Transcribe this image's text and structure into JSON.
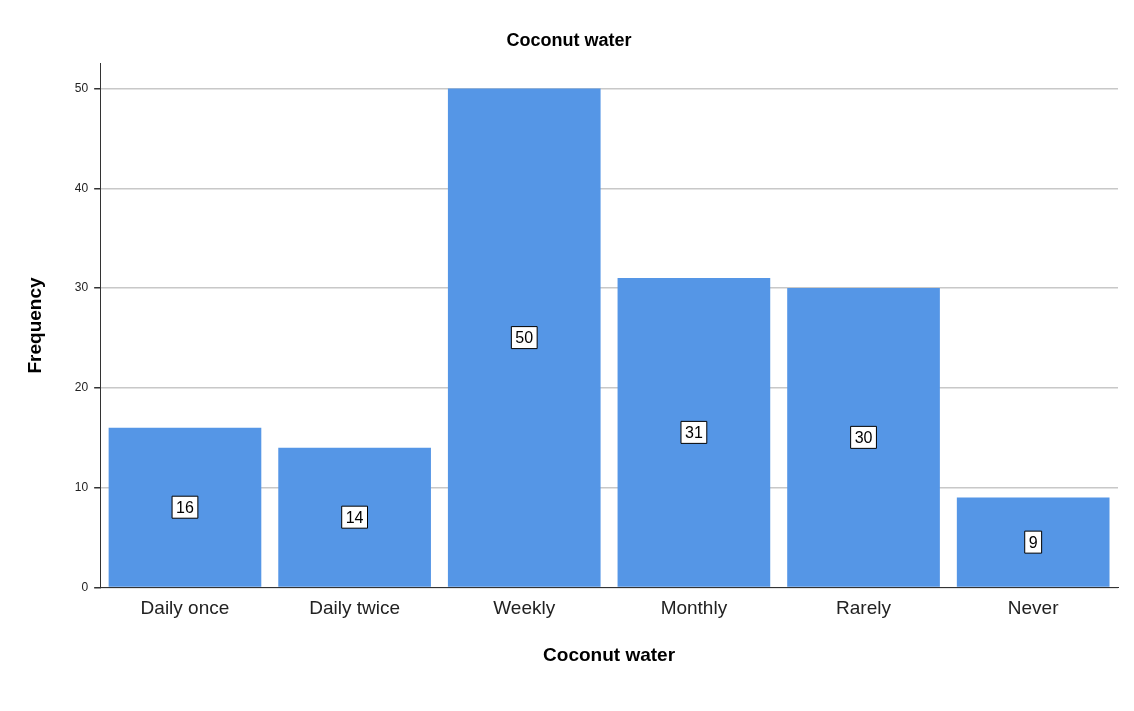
{
  "chart_data": {
    "type": "bar",
    "title": "Coconut water",
    "xlabel": "Coconut water",
    "ylabel": "Frequency",
    "categories": [
      "Daily once",
      "Daily twice",
      "Weekly",
      "Monthly",
      "Rarely",
      "Never"
    ],
    "values": [
      16,
      14,
      50,
      31,
      30,
      9
    ],
    "color": "#5596e6",
    "ylim": [
      0,
      52.5
    ],
    "yticks": [
      0,
      10,
      20,
      30,
      40,
      50
    ],
    "grid": "y",
    "data_labels": true
  }
}
